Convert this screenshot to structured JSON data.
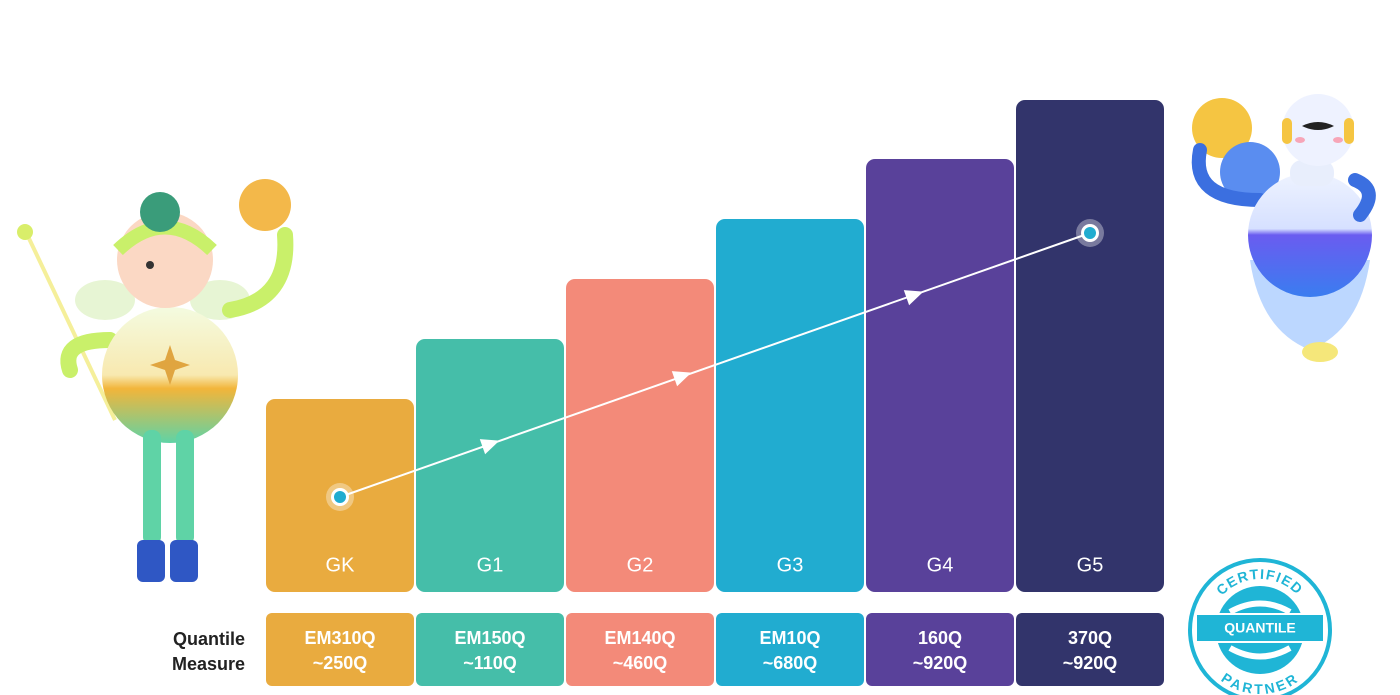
{
  "row_label": [
    "Quantile",
    "Measure"
  ],
  "grades": [
    {
      "label": "GK",
      "measure": [
        "EM310Q",
        "~250Q"
      ],
      "color": "#e9ab3f"
    },
    {
      "label": "G1",
      "measure": [
        "EM150Q",
        "~110Q"
      ],
      "color": "#45bea9"
    },
    {
      "label": "G2",
      "measure": [
        "EM140Q",
        "~460Q"
      ],
      "color": "#f38a79"
    },
    {
      "label": "G3",
      "measure": [
        "EM10Q",
        "~680Q"
      ],
      "color": "#21acd0"
    },
    {
      "label": "G4",
      "measure": [
        "160Q",
        "~920Q"
      ],
      "color": "#59419a"
    },
    {
      "label": "G5",
      "measure": [
        "370Q",
        "~920Q"
      ],
      "color": "#32346b"
    }
  ],
  "badge": {
    "top": "CERTIFIED",
    "middle": "QUANTILE",
    "bottom": "PARTNER"
  }
}
